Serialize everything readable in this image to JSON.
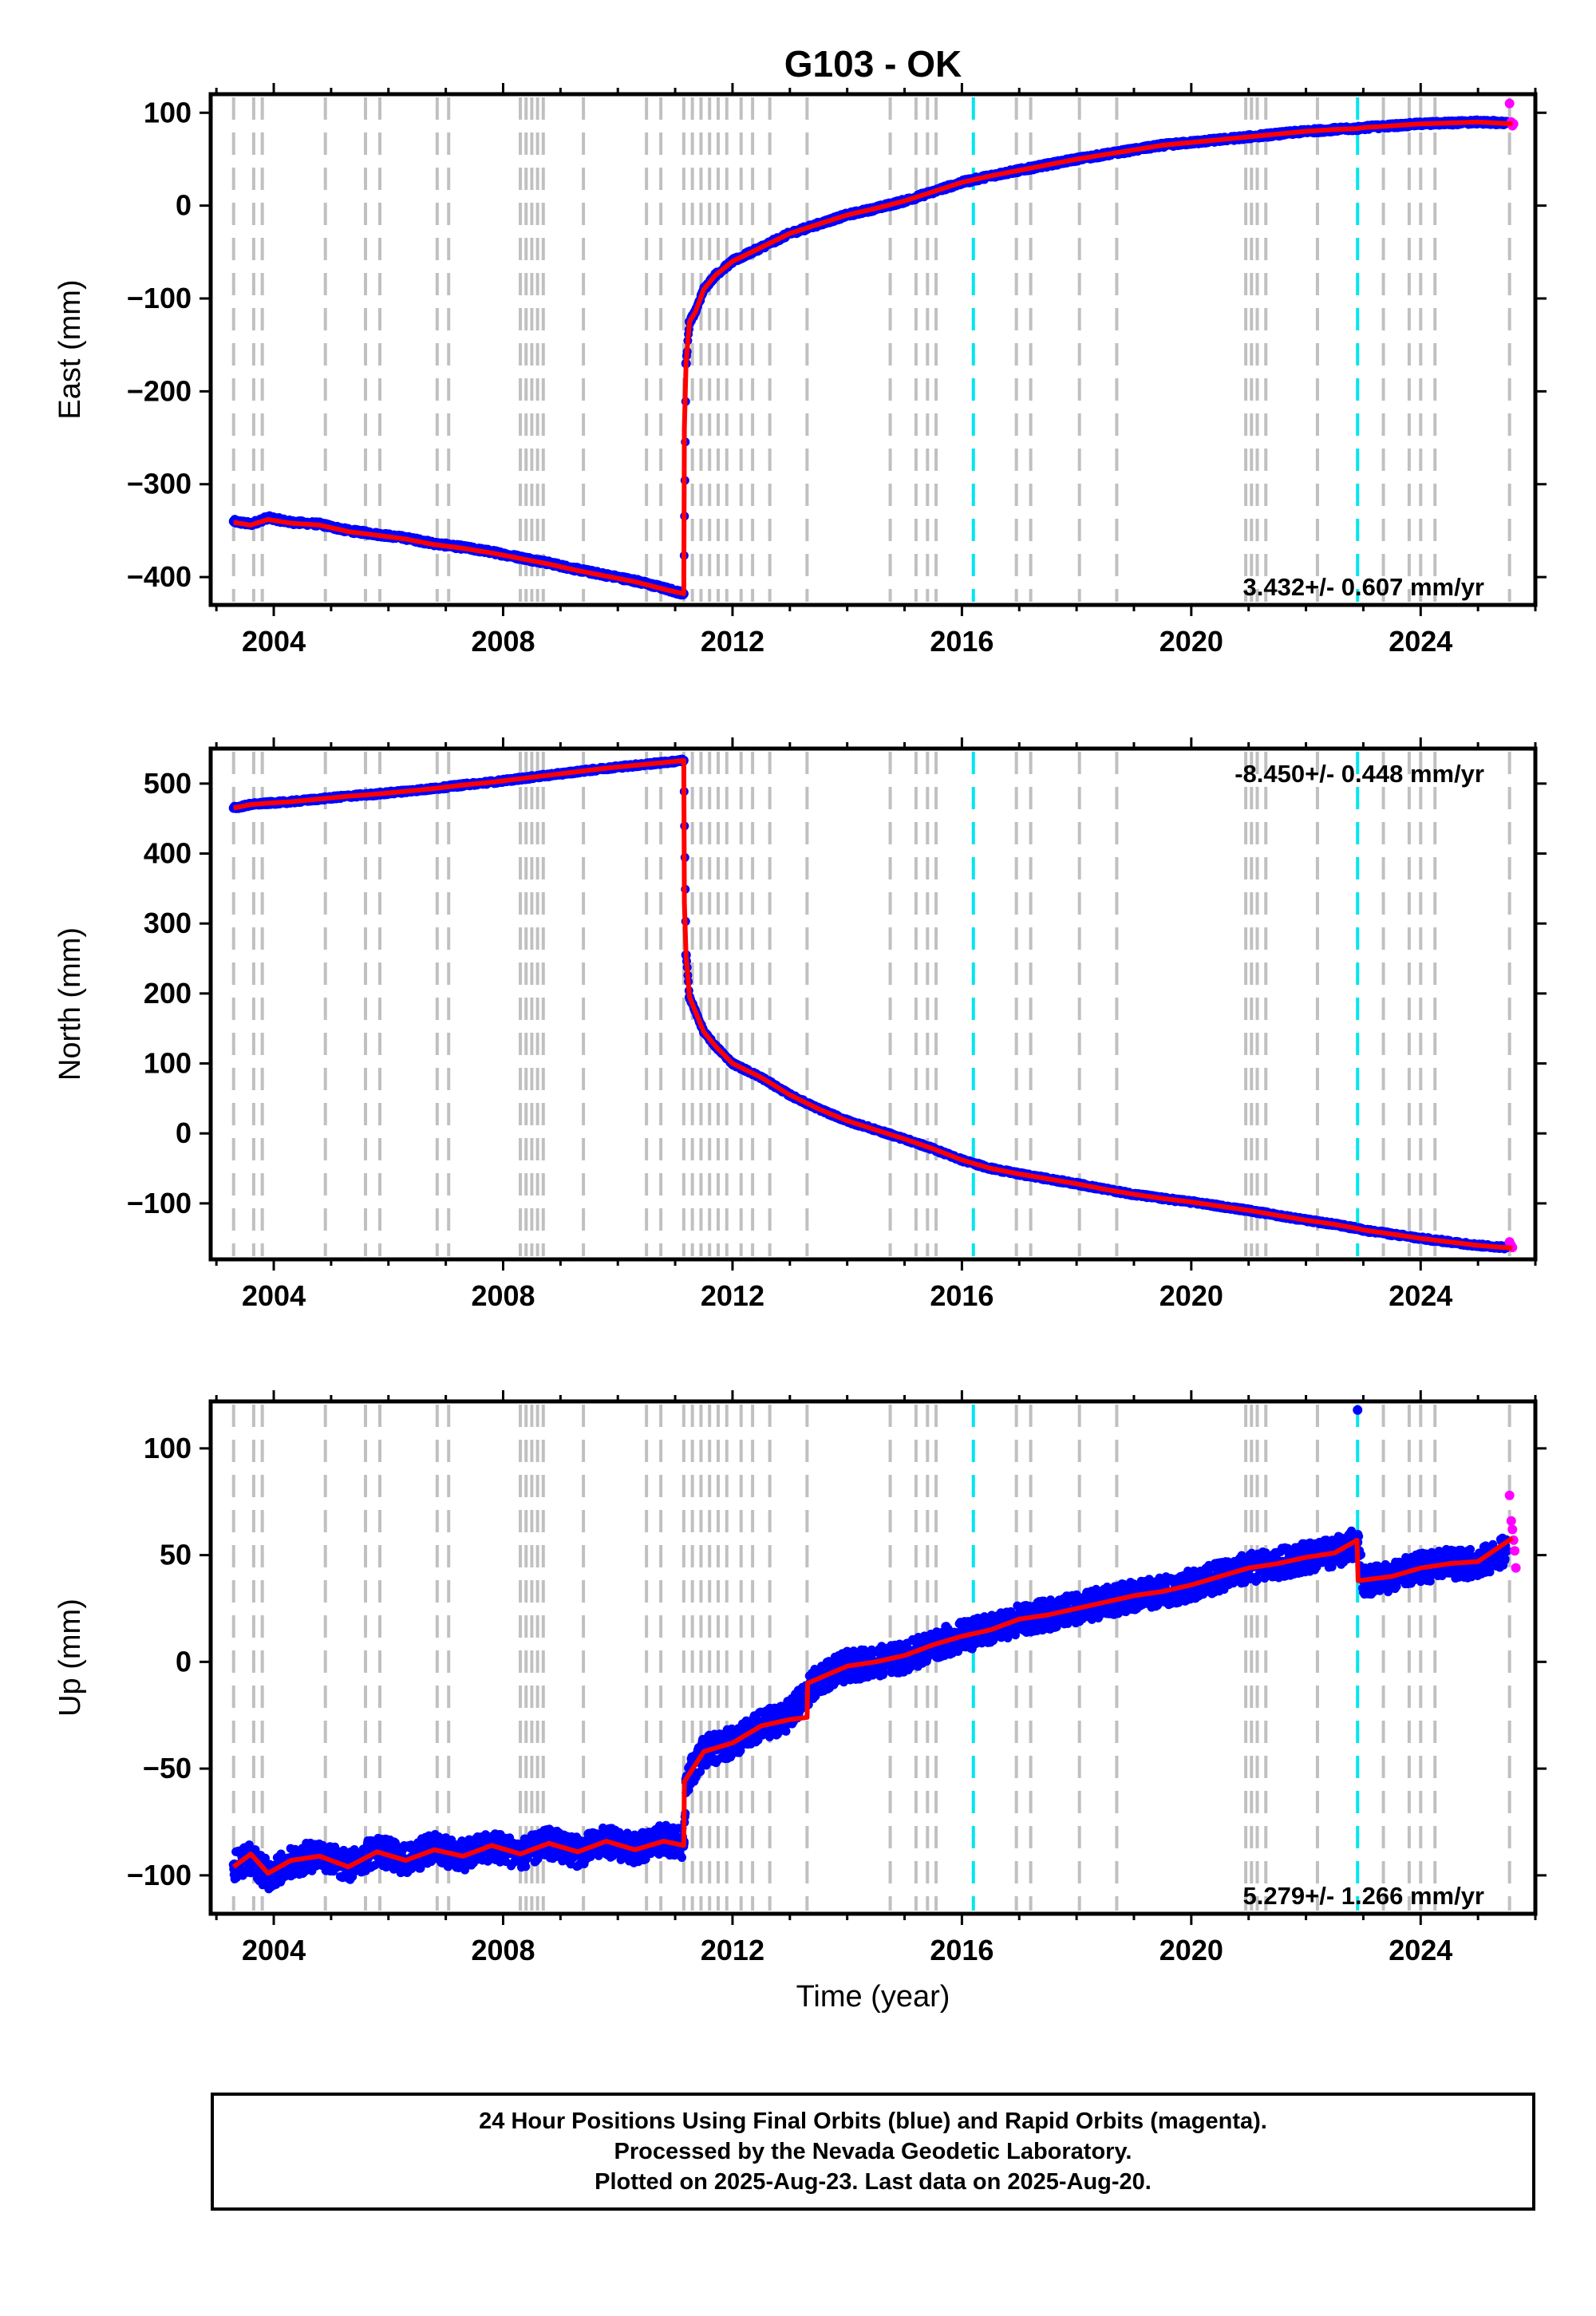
{
  "title": "G103 - OK",
  "xlabel": "Time (year)",
  "colors": {
    "final_points": "#0000ff",
    "rapid_points": "#ff00ff",
    "model_line": "#ff0000",
    "steps_equipment": "#c0c0c0",
    "steps_earthquake": "#00e5ee"
  },
  "chart_data": [
    {
      "type": "scatter",
      "panel": "east",
      "ylabel": "East (mm)",
      "xlim": [
        2002.9,
        2026.0
      ],
      "ylim": [
        -430,
        120
      ],
      "xticks": [
        2004,
        2008,
        2012,
        2016,
        2020,
        2024
      ],
      "yticks": [
        -400,
        -300,
        -200,
        -100,
        0,
        100
      ],
      "ytick_labels": [
        "−400",
        "−300",
        "−200",
        "−100",
        "0",
        "100"
      ],
      "velocity_label": "3.432+/- 0.607 mm/yr",
      "velocity_position": "bottom-right",
      "series": [
        {
          "role": "final",
          "x": [
            2003.3,
            2003.6,
            2003.9,
            2004.3,
            2004.8,
            2005.3,
            2005.8,
            2006.3,
            2006.8,
            2007.3,
            2007.8,
            2008.3,
            2008.8,
            2009.3,
            2009.8,
            2010.3,
            2010.8,
            2011.15,
            2011.19,
            2011.25,
            2011.35,
            2011.5,
            2011.7,
            2012.0,
            2012.5,
            2013.0,
            2013.5,
            2014.0,
            2014.5,
            2015.0,
            2015.5,
            2016.0,
            2016.5,
            2017.0,
            2017.5,
            2018.0,
            2018.5,
            2019.0,
            2019.5,
            2020.0,
            2020.5,
            2021.0,
            2021.5,
            2022.0,
            2022.5,
            2022.9,
            2023.0,
            2023.5,
            2024.0,
            2024.5,
            2025.0,
            2025.5
          ],
          "y": [
            -340,
            -343,
            -336,
            -341,
            -343,
            -350,
            -354,
            -358,
            -364,
            -368,
            -373,
            -379,
            -385,
            -392,
            -398,
            -404,
            -412,
            -418,
            -170,
            -125,
            -115,
            -90,
            -75,
            -60,
            -45,
            -30,
            -20,
            -10,
            -3,
            5,
            15,
            25,
            32,
            38,
            44,
            50,
            55,
            60,
            65,
            68,
            71,
            74,
            77,
            80,
            82,
            83,
            84,
            86,
            88,
            89,
            90,
            89
          ]
        },
        {
          "role": "rapid",
          "x": [
            2025.55,
            2025.58,
            2025.6,
            2025.62
          ],
          "y": [
            110,
            90,
            86,
            88
          ]
        },
        {
          "role": "model",
          "x": [
            2003.3,
            2003.6,
            2003.9,
            2004.3,
            2004.8,
            2005.3,
            2005.8,
            2006.3,
            2006.8,
            2007.3,
            2007.8,
            2008.3,
            2008.8,
            2009.3,
            2009.8,
            2010.3,
            2010.8,
            2011.15,
            2011.16,
            2011.19,
            2011.25,
            2011.35,
            2011.5,
            2011.7,
            2012.0,
            2012.5,
            2013.0,
            2013.5,
            2014.0,
            2014.5,
            2015.0,
            2015.5,
            2016.0,
            2016.5,
            2017.0,
            2017.5,
            2018.0,
            2018.5,
            2019.0,
            2019.5,
            2020.0,
            2020.5,
            2021.0,
            2021.5,
            2022.0,
            2022.5,
            2022.9,
            2023.0,
            2023.5,
            2024.0,
            2024.5,
            2025.0,
            2025.6
          ],
          "y": [
            -341,
            -344,
            -338,
            -342,
            -344,
            -351,
            -355,
            -359,
            -365,
            -369,
            -374,
            -380,
            -386,
            -393,
            -399,
            -405,
            -413,
            -418,
            -240,
            -170,
            -125,
            -115,
            -90,
            -75,
            -60,
            -45,
            -30,
            -20,
            -10,
            -3,
            5,
            15,
            25,
            32,
            38,
            44,
            50,
            55,
            60,
            65,
            68,
            71,
            74,
            77,
            80,
            82,
            83,
            84,
            86,
            88,
            89,
            90,
            88
          ]
        }
      ],
      "steps_equipment": [
        2003.3,
        2003.65,
        2003.8,
        2004.9,
        2005.6,
        2005.85,
        2006.85,
        2007.05,
        2008.3,
        2008.4,
        2008.5,
        2008.6,
        2008.7,
        2009.4,
        2010.5,
        2010.75,
        2011.15,
        2011.3,
        2011.45,
        2011.6,
        2011.75,
        2011.9,
        2012.15,
        2012.35,
        2012.65,
        2013.3,
        2014.75,
        2015.2,
        2015.4,
        2015.55,
        2016.95,
        2017.2,
        2018.05,
        2018.7,
        2020.95,
        2021.05,
        2021.15,
        2021.3,
        2022.2,
        2023.35,
        2023.8,
        2024.0,
        2024.25,
        2025.55
      ],
      "steps_earthquake": [
        2016.2,
        2022.9
      ]
    },
    {
      "type": "scatter",
      "panel": "north",
      "ylabel": "North (mm)",
      "xlim": [
        2002.9,
        2026.0
      ],
      "ylim": [
        -180,
        550
      ],
      "xticks": [
        2004,
        2008,
        2012,
        2016,
        2020,
        2024
      ],
      "yticks": [
        -100,
        0,
        100,
        200,
        300,
        400,
        500
      ],
      "ytick_labels": [
        "−100",
        "0",
        "100",
        "200",
        "300",
        "400",
        "500"
      ],
      "velocity_label": "-8.450+/- 0.448 mm/yr",
      "velocity_position": "top-right",
      "series": [
        {
          "role": "final",
          "x": [
            2003.3,
            2003.6,
            2003.9,
            2004.3,
            2004.8,
            2005.3,
            2005.8,
            2006.3,
            2006.8,
            2007.3,
            2007.8,
            2008.3,
            2008.8,
            2009.3,
            2009.8,
            2010.3,
            2010.8,
            2011.15,
            2011.19,
            2011.25,
            2011.35,
            2011.5,
            2011.7,
            2012.0,
            2012.5,
            2013.0,
            2013.5,
            2014.0,
            2014.5,
            2015.0,
            2015.5,
            2016.0,
            2016.5,
            2017.0,
            2017.5,
            2018.0,
            2018.5,
            2019.0,
            2019.5,
            2020.0,
            2020.5,
            2021.0,
            2021.5,
            2022.0,
            2022.5,
            2022.9,
            2023.0,
            2023.5,
            2024.0,
            2024.5,
            2025.0,
            2025.5
          ],
          "y": [
            465,
            470,
            472,
            474,
            478,
            482,
            485,
            489,
            493,
            498,
            502,
            507,
            512,
            517,
            522,
            526,
            530,
            533,
            255,
            195,
            175,
            145,
            125,
            100,
            80,
            55,
            35,
            18,
            5,
            -8,
            -22,
            -38,
            -50,
            -58,
            -65,
            -72,
            -80,
            -87,
            -93,
            -98,
            -104,
            -110,
            -117,
            -124,
            -130,
            -136,
            -138,
            -144,
            -150,
            -155,
            -160,
            -163
          ]
        },
        {
          "role": "rapid",
          "x": [
            2025.55,
            2025.58,
            2025.6
          ],
          "y": [
            -155,
            -160,
            -163
          ]
        },
        {
          "role": "model",
          "x": [
            2003.3,
            2003.6,
            2003.9,
            2004.3,
            2004.8,
            2005.3,
            2005.8,
            2006.3,
            2006.8,
            2007.3,
            2007.8,
            2008.3,
            2008.8,
            2009.3,
            2009.8,
            2010.3,
            2010.8,
            2011.15,
            2011.16,
            2011.19,
            2011.25,
            2011.35,
            2011.5,
            2011.7,
            2012.0,
            2012.5,
            2013.0,
            2013.5,
            2014.0,
            2014.5,
            2015.0,
            2015.5,
            2016.0,
            2016.5,
            2017.0,
            2017.5,
            2018.0,
            2018.5,
            2019.0,
            2019.5,
            2020.0,
            2020.5,
            2021.0,
            2021.5,
            2022.0,
            2022.5,
            2022.9,
            2023.0,
            2023.5,
            2024.0,
            2024.5,
            2025.0,
            2025.6
          ],
          "y": [
            465,
            470,
            472,
            474,
            478,
            482,
            485,
            489,
            493,
            498,
            502,
            507,
            512,
            517,
            522,
            526,
            530,
            533,
            330,
            255,
            195,
            175,
            145,
            125,
            100,
            80,
            55,
            35,
            18,
            5,
            -8,
            -22,
            -38,
            -50,
            -58,
            -65,
            -72,
            -80,
            -87,
            -93,
            -98,
            -104,
            -110,
            -117,
            -124,
            -130,
            -136,
            -138,
            -144,
            -150,
            -155,
            -160,
            -164
          ]
        }
      ],
      "steps_equipment": [
        2003.3,
        2003.65,
        2003.8,
        2004.9,
        2005.6,
        2005.85,
        2006.85,
        2007.05,
        2008.3,
        2008.4,
        2008.5,
        2008.6,
        2008.7,
        2009.4,
        2010.5,
        2010.75,
        2011.15,
        2011.3,
        2011.45,
        2011.6,
        2011.75,
        2011.9,
        2012.15,
        2012.35,
        2012.65,
        2013.3,
        2014.75,
        2015.2,
        2015.4,
        2015.55,
        2016.95,
        2017.2,
        2018.05,
        2018.7,
        2020.95,
        2021.05,
        2021.15,
        2021.3,
        2022.2,
        2023.35,
        2023.8,
        2024.0,
        2024.25,
        2025.55
      ],
      "steps_earthquake": [
        2016.2,
        2022.9
      ]
    },
    {
      "type": "scatter",
      "panel": "up",
      "ylabel": "Up (mm)",
      "xlabel": "Time (year)",
      "xlim": [
        2002.9,
        2026.0
      ],
      "ylim": [
        -118,
        122
      ],
      "xticks": [
        2004,
        2008,
        2012,
        2016,
        2020,
        2024
      ],
      "yticks": [
        -100,
        -50,
        0,
        50,
        100
      ],
      "ytick_labels": [
        "−100",
        "−50",
        "0",
        "50",
        "100"
      ],
      "velocity_label": "5.279+/- 1.266 mm/yr",
      "velocity_position": "bottom-right",
      "series": [
        {
          "role": "final",
          "x": [
            2003.3,
            2003.6,
            2003.9,
            2004.3,
            2004.8,
            2005.3,
            2005.8,
            2006.3,
            2006.8,
            2007.3,
            2007.8,
            2008.3,
            2008.8,
            2009.3,
            2009.8,
            2010.3,
            2010.8,
            2011.15,
            2011.19,
            2011.5,
            2012.0,
            2012.5,
            2013.0,
            2013.5,
            2014.0,
            2014.5,
            2015.0,
            2015.5,
            2016.0,
            2016.5,
            2017.0,
            2017.5,
            2018.0,
            2018.5,
            2019.0,
            2019.5,
            2020.0,
            2020.5,
            2021.0,
            2021.5,
            2022.0,
            2022.5,
            2022.9,
            2023.0,
            2023.5,
            2024.0,
            2024.5,
            2025.0,
            2025.5
          ],
          "y": [
            -95,
            -92,
            -100,
            -94,
            -90,
            -96,
            -88,
            -93,
            -87,
            -91,
            -86,
            -90,
            -85,
            -89,
            -84,
            -88,
            -83,
            -85,
            -55,
            -42,
            -38,
            -30,
            -25,
            -8,
            -2,
            0,
            2,
            8,
            12,
            15,
            20,
            22,
            25,
            28,
            31,
            33,
            36,
            40,
            44,
            46,
            49,
            51,
            56,
            38,
            40,
            44,
            46,
            46,
            52
          ]
        },
        {
          "role": "rapid",
          "x": [
            2025.55,
            2025.58,
            2025.6,
            2025.62,
            2025.64,
            2025.66
          ],
          "y": [
            78,
            66,
            62,
            57,
            52,
            44
          ]
        },
        {
          "role": "outlier",
          "x": [
            2022.9
          ],
          "y": [
            118
          ]
        },
        {
          "role": "model",
          "x": [
            2003.3,
            2003.6,
            2003.9,
            2004.3,
            2004.8,
            2005.3,
            2005.8,
            2006.3,
            2006.8,
            2007.3,
            2007.8,
            2008.3,
            2008.8,
            2009.3,
            2009.8,
            2010.3,
            2010.8,
            2011.15,
            2011.16,
            2011.5,
            2012.0,
            2012.5,
            2013.0,
            2013.3,
            2013.31,
            2014.0,
            2014.5,
            2015.0,
            2015.5,
            2016.0,
            2016.5,
            2017.0,
            2017.5,
            2018.0,
            2018.5,
            2019.0,
            2019.5,
            2020.0,
            2020.5,
            2021.0,
            2021.5,
            2022.0,
            2022.5,
            2022.89,
            2022.91,
            2023.5,
            2024.0,
            2024.5,
            2025.0,
            2025.6
          ],
          "y": [
            -96,
            -90,
            -99,
            -93,
            -91,
            -96,
            -89,
            -93,
            -88,
            -91,
            -86,
            -90,
            -85,
            -89,
            -84,
            -88,
            -84,
            -86,
            -56,
            -42,
            -38,
            -30,
            -27,
            -26,
            -10,
            -2,
            0,
            3,
            8,
            12,
            15,
            20,
            22,
            25,
            28,
            31,
            33,
            36,
            40,
            44,
            46,
            49,
            51,
            57,
            38,
            40,
            44,
            46,
            47,
            58
          ]
        }
      ],
      "steps_equipment": [
        2003.3,
        2003.65,
        2003.8,
        2004.9,
        2005.6,
        2005.85,
        2006.85,
        2007.05,
        2008.3,
        2008.4,
        2008.5,
        2008.6,
        2008.7,
        2009.4,
        2010.5,
        2010.75,
        2011.15,
        2011.3,
        2011.45,
        2011.6,
        2011.75,
        2011.9,
        2012.15,
        2012.35,
        2012.65,
        2013.3,
        2014.75,
        2015.2,
        2015.4,
        2015.55,
        2016.95,
        2017.2,
        2018.05,
        2018.7,
        2020.95,
        2021.05,
        2021.15,
        2021.3,
        2022.2,
        2023.35,
        2023.8,
        2024.0,
        2024.25,
        2025.55
      ],
      "steps_earthquake": [
        2016.2,
        2022.9
      ]
    }
  ],
  "footer": {
    "line1": "24 Hour Positions Using Final Orbits (blue) and Rapid Orbits (magenta).",
    "line2": "Processed by the Nevada Geodetic Laboratory.",
    "line3": "Plotted on 2025-Aug-23. Last data on 2025-Aug-20."
  }
}
